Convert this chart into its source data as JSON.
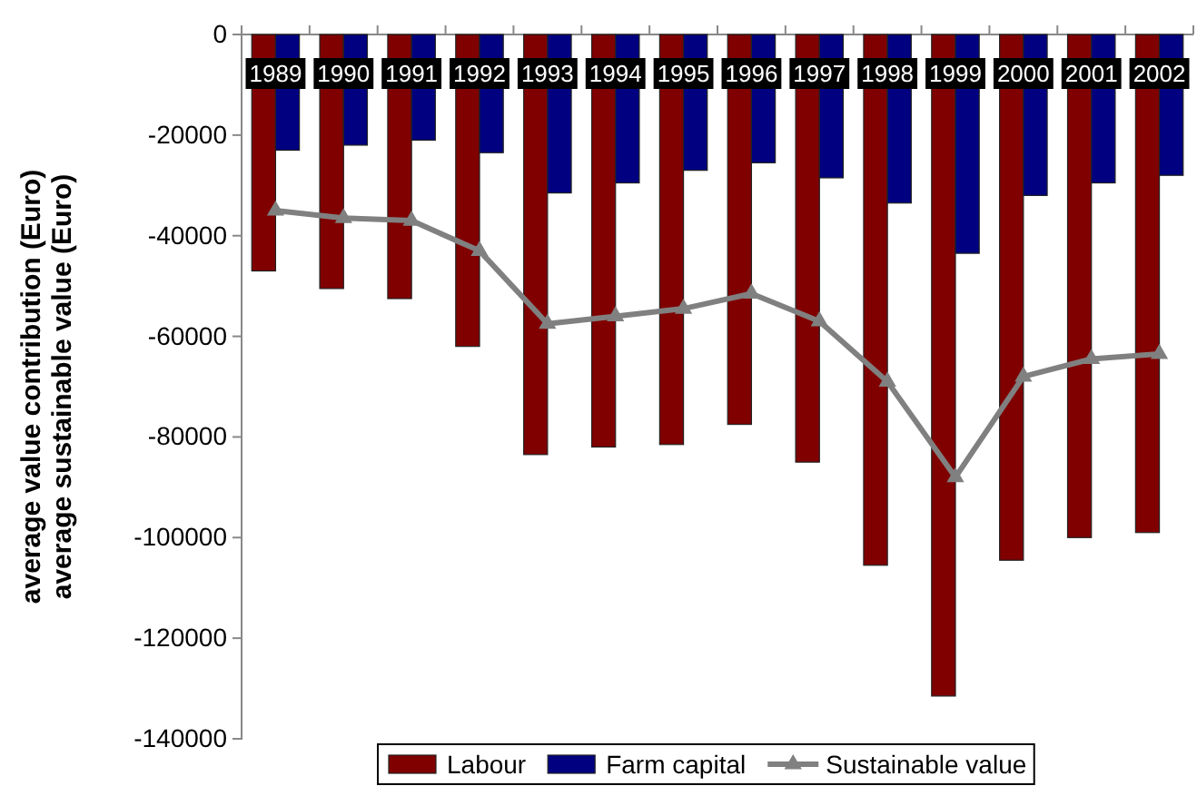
{
  "chart_data": {
    "type": "bar",
    "ylabel": "average value contribution (Euro)\naverage sustainable value (Euro)",
    "categories": [
      "1989",
      "1990",
      "1991",
      "1992",
      "1993",
      "1994",
      "1995",
      "1996",
      "1997",
      "1998",
      "1999",
      "2000",
      "2001",
      "2002"
    ],
    "series": [
      {
        "name": "Labour",
        "color": "#800000",
        "values": [
          -47000,
          -50500,
          -52500,
          -62000,
          -83500,
          -82000,
          -81500,
          -77500,
          -85000,
          -105500,
          -131500,
          -104500,
          -100000,
          -99000
        ]
      },
      {
        "name": "Farm capital",
        "color": "#000080",
        "values": [
          -23000,
          -22000,
          -21000,
          -23500,
          -31500,
          -29500,
          -27000,
          -25500,
          -28500,
          -33500,
          -43500,
          -32000,
          -29500,
          -28000
        ]
      },
      {
        "name": "Sustainable value",
        "type": "line",
        "color": "#808080",
        "marker": "triangle",
        "values": [
          -35000,
          -36500,
          -37000,
          -43000,
          -57500,
          -56000,
          -54500,
          -51500,
          -57000,
          -69000,
          -88000,
          -68000,
          -64500,
          -63500
        ]
      }
    ],
    "ylim": [
      -140000,
      0
    ],
    "yticks": [
      -140000,
      -120000,
      -100000,
      -80000,
      -60000,
      -40000,
      -20000,
      0
    ],
    "grid": false,
    "legend": "bottom"
  }
}
